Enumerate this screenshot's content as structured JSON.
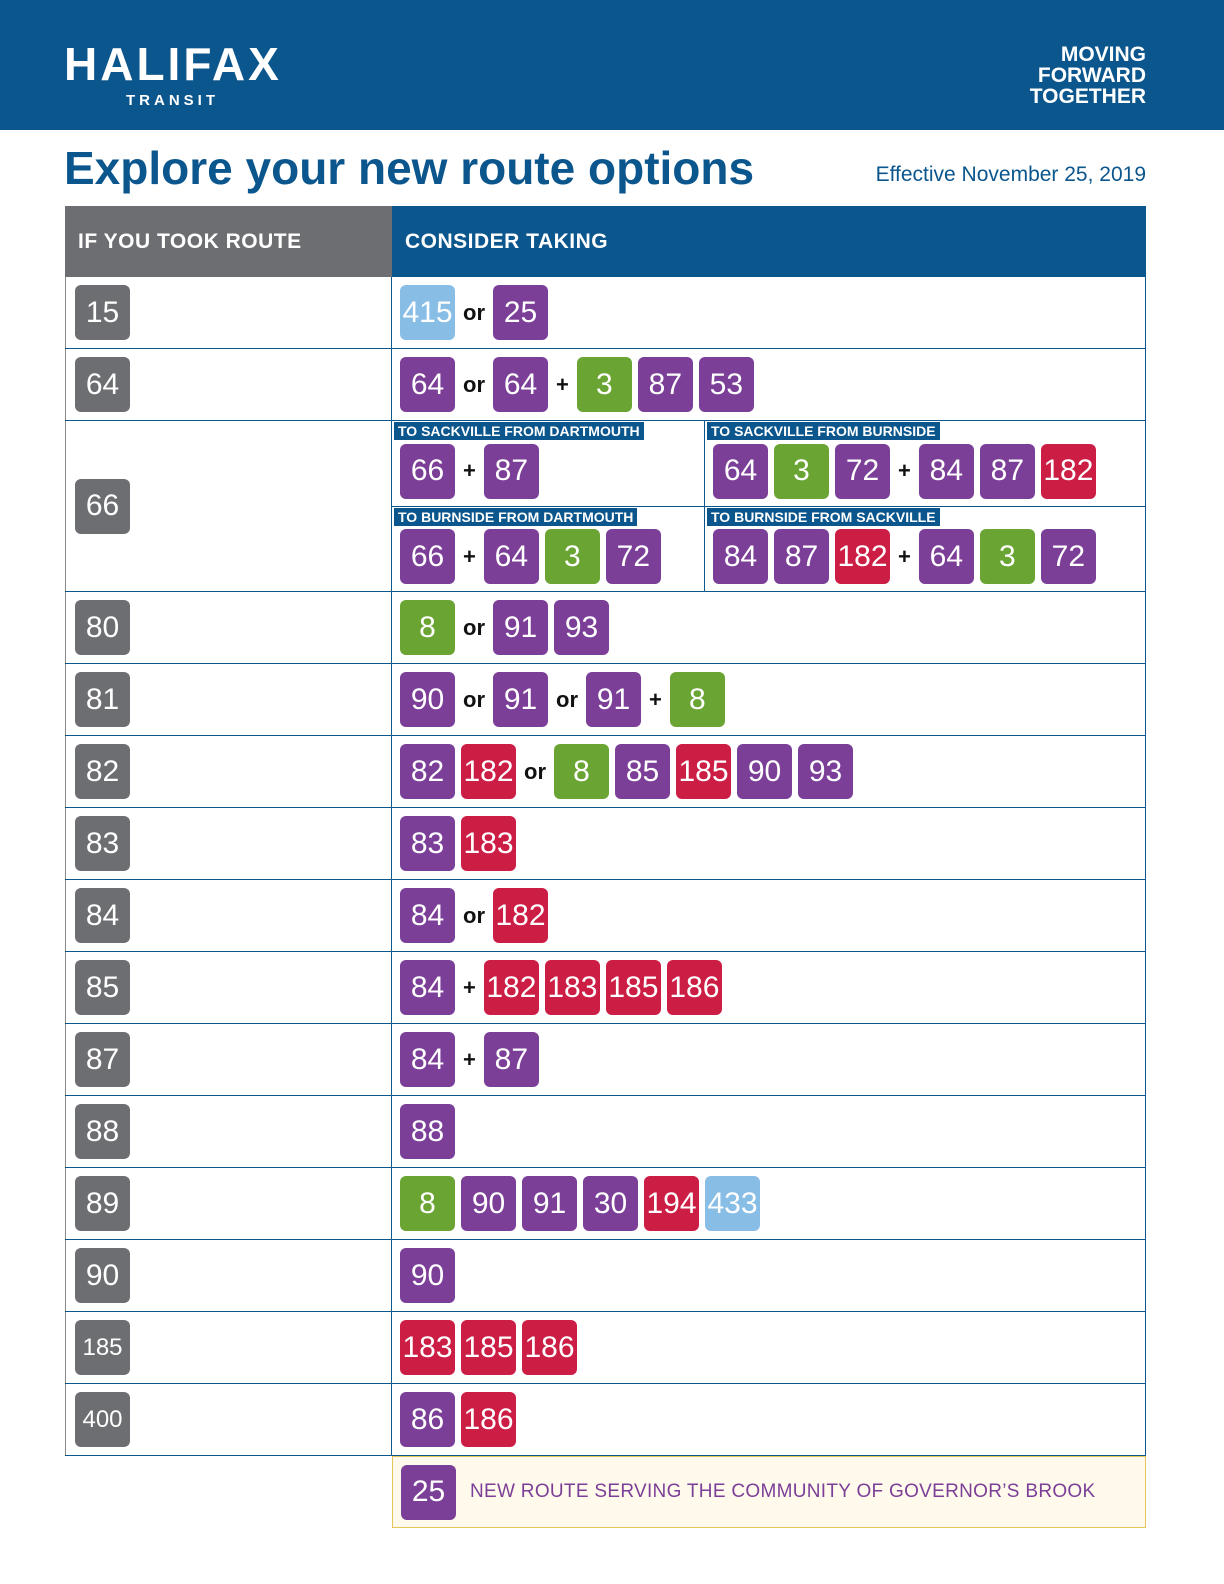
{
  "header": {
    "logo_main": "HALIFAX",
    "logo_sub": "TRANSIT",
    "tagline": [
      "MOVING",
      "FORWARD",
      "TOGETHER"
    ]
  },
  "title": "Explore your new route options",
  "effective": "Effective November 25, 2019",
  "table": {
    "col_left": "IF YOU TOOK ROUTE",
    "col_right": "CONSIDER TAKING",
    "rows": [
      {
        "route": "15",
        "options": [
          {
            "t": "b",
            "v": "415",
            "c": "lightblue"
          },
          {
            "t": "s",
            "v": "or"
          },
          {
            "t": "b",
            "v": "25",
            "c": "purple"
          }
        ]
      },
      {
        "route": "64",
        "options": [
          {
            "t": "b",
            "v": "64",
            "c": "purple"
          },
          {
            "t": "s",
            "v": "or"
          },
          {
            "t": "b",
            "v": "64",
            "c": "purple"
          },
          {
            "t": "s",
            "v": "+"
          },
          {
            "t": "b",
            "v": "3",
            "c": "green"
          },
          {
            "t": "b",
            "v": "87",
            "c": "purple"
          },
          {
            "t": "b",
            "v": "53",
            "c": "purple"
          }
        ]
      },
      {
        "route": "66",
        "quads": [
          {
            "label": "TO SACKVILLE FROM DARTMOUTH",
            "options": [
              {
                "t": "b",
                "v": "66",
                "c": "purple"
              },
              {
                "t": "s",
                "v": "+"
              },
              {
                "t": "b",
                "v": "87",
                "c": "purple"
              }
            ]
          },
          {
            "label": "TO SACKVILLE FROM BURNSIDE",
            "options": [
              {
                "t": "b",
                "v": "64",
                "c": "purple"
              },
              {
                "t": "b",
                "v": "3",
                "c": "green"
              },
              {
                "t": "b",
                "v": "72",
                "c": "purple"
              },
              {
                "t": "s",
                "v": "+"
              },
              {
                "t": "b",
                "v": "84",
                "c": "purple"
              },
              {
                "t": "b",
                "v": "87",
                "c": "purple"
              },
              {
                "t": "b",
                "v": "182",
                "c": "red"
              }
            ]
          },
          {
            "label": "TO BURNSIDE FROM DARTMOUTH",
            "options": [
              {
                "t": "b",
                "v": "66",
                "c": "purple"
              },
              {
                "t": "s",
                "v": "+"
              },
              {
                "t": "b",
                "v": "64",
                "c": "purple"
              },
              {
                "t": "b",
                "v": "3",
                "c": "green"
              },
              {
                "t": "b",
                "v": "72",
                "c": "purple"
              }
            ]
          },
          {
            "label": "TO BURNSIDE FROM SACKVILLE",
            "options": [
              {
                "t": "b",
                "v": "84",
                "c": "purple"
              },
              {
                "t": "b",
                "v": "87",
                "c": "purple"
              },
              {
                "t": "b",
                "v": "182",
                "c": "red"
              },
              {
                "t": "s",
                "v": "+"
              },
              {
                "t": "b",
                "v": "64",
                "c": "purple"
              },
              {
                "t": "b",
                "v": "3",
                "c": "green"
              },
              {
                "t": "b",
                "v": "72",
                "c": "purple"
              }
            ]
          }
        ]
      },
      {
        "route": "80",
        "options": [
          {
            "t": "b",
            "v": "8",
            "c": "green"
          },
          {
            "t": "s",
            "v": "or"
          },
          {
            "t": "b",
            "v": "91",
            "c": "purple"
          },
          {
            "t": "b",
            "v": "93",
            "c": "purple"
          }
        ]
      },
      {
        "route": "81",
        "options": [
          {
            "t": "b",
            "v": "90",
            "c": "purple"
          },
          {
            "t": "s",
            "v": "or"
          },
          {
            "t": "b",
            "v": "91",
            "c": "purple"
          },
          {
            "t": "s",
            "v": "or"
          },
          {
            "t": "b",
            "v": "91",
            "c": "purple"
          },
          {
            "t": "s",
            "v": "+"
          },
          {
            "t": "b",
            "v": "8",
            "c": "green"
          }
        ]
      },
      {
        "route": "82",
        "options": [
          {
            "t": "b",
            "v": "82",
            "c": "purple"
          },
          {
            "t": "b",
            "v": "182",
            "c": "red"
          },
          {
            "t": "s",
            "v": "or"
          },
          {
            "t": "b",
            "v": "8",
            "c": "green"
          },
          {
            "t": "b",
            "v": "85",
            "c": "purple"
          },
          {
            "t": "b",
            "v": "185",
            "c": "red"
          },
          {
            "t": "b",
            "v": "90",
            "c": "purple"
          },
          {
            "t": "b",
            "v": "93",
            "c": "purple"
          }
        ]
      },
      {
        "route": "83",
        "options": [
          {
            "t": "b",
            "v": "83",
            "c": "purple"
          },
          {
            "t": "b",
            "v": "183",
            "c": "red"
          }
        ]
      },
      {
        "route": "84",
        "options": [
          {
            "t": "b",
            "v": "84",
            "c": "purple"
          },
          {
            "t": "s",
            "v": "or"
          },
          {
            "t": "b",
            "v": "182",
            "c": "red"
          }
        ]
      },
      {
        "route": "85",
        "options": [
          {
            "t": "b",
            "v": "84",
            "c": "purple"
          },
          {
            "t": "s",
            "v": "+"
          },
          {
            "t": "b",
            "v": "182",
            "c": "red"
          },
          {
            "t": "b",
            "v": "183",
            "c": "red"
          },
          {
            "t": "b",
            "v": "185",
            "c": "red"
          },
          {
            "t": "b",
            "v": "186",
            "c": "red"
          }
        ]
      },
      {
        "route": "87",
        "options": [
          {
            "t": "b",
            "v": "84",
            "c": "purple"
          },
          {
            "t": "s",
            "v": "+"
          },
          {
            "t": "b",
            "v": "87",
            "c": "purple"
          }
        ]
      },
      {
        "route": "88",
        "options": [
          {
            "t": "b",
            "v": "88",
            "c": "purple"
          }
        ]
      },
      {
        "route": "89",
        "options": [
          {
            "t": "b",
            "v": "8",
            "c": "green"
          },
          {
            "t": "b",
            "v": "90",
            "c": "purple"
          },
          {
            "t": "b",
            "v": "91",
            "c": "purple"
          },
          {
            "t": "b",
            "v": "30",
            "c": "purple"
          },
          {
            "t": "b",
            "v": "194",
            "c": "red"
          },
          {
            "t": "b",
            "v": "433",
            "c": "lightblue"
          }
        ]
      },
      {
        "route": "90",
        "options": [
          {
            "t": "b",
            "v": "90",
            "c": "purple"
          }
        ]
      },
      {
        "route": "185",
        "options": [
          {
            "t": "b",
            "v": "183",
            "c": "red"
          },
          {
            "t": "b",
            "v": "185",
            "c": "red"
          },
          {
            "t": "b",
            "v": "186",
            "c": "red"
          }
        ]
      },
      {
        "route": "400",
        "options": [
          {
            "t": "b",
            "v": "86",
            "c": "purple"
          },
          {
            "t": "b",
            "v": "186",
            "c": "red"
          }
        ]
      }
    ]
  },
  "note": {
    "route": "25",
    "text": "NEW ROUTE SERVING THE COMMUNITY OF GOVERNOR’S BROOK"
  },
  "colors": {
    "brand_blue": "#0b568d",
    "grey": "#6d6e71",
    "purple": "#7c3f98",
    "green": "#6aa533",
    "red": "#cc1d44",
    "light_blue": "#88bde6"
  }
}
